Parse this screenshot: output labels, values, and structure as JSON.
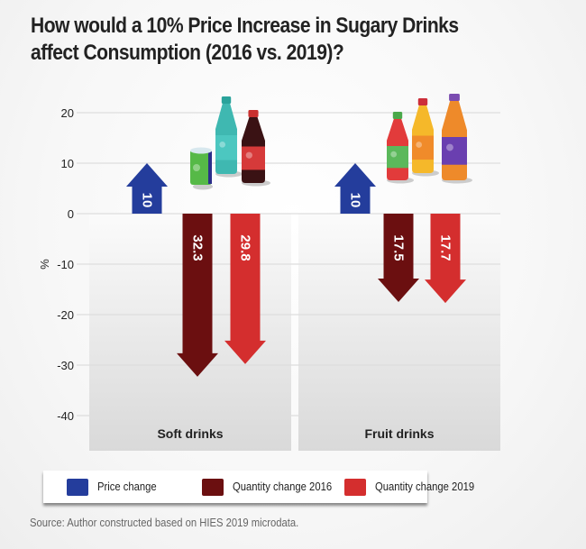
{
  "title": {
    "line1": "How would a 10% Price Increase in Sugary Drinks",
    "line2": "affect Consumption (2016 vs. 2019)?"
  },
  "chart_data": {
    "type": "bar",
    "title": "How would a 10% Price Increase in Sugary Drinks affect Consumption (2016 vs. 2019)?",
    "xlabel": "",
    "ylabel": "%",
    "ylim": [
      -40,
      20
    ],
    "yticks": [
      20,
      10,
      0,
      -10,
      -20,
      -30,
      -40
    ],
    "grid": true,
    "categories": [
      "Soft drinks",
      "Fruit drinks"
    ],
    "series": [
      {
        "name": "Price change",
        "color": "#243d9c",
        "values": [
          10,
          10
        ],
        "labels": [
          "10",
          "10"
        ]
      },
      {
        "name": "Quantity change 2016",
        "color": "#6b0f10",
        "values": [
          -32.3,
          -17.5
        ],
        "labels": [
          "32.3",
          "17.5"
        ]
      },
      {
        "name": "Quantity change 2019",
        "color": "#d42e2e",
        "values": [
          -29.8,
          -17.7
        ],
        "labels": [
          "29.8",
          "17.7"
        ]
      }
    ],
    "legend_position": "bottom",
    "bar_style": "arrows",
    "decorations": [
      "soft-drink-bottles-illustration",
      "fruit-drink-bottles-illustration"
    ]
  },
  "legend": {
    "items": [
      {
        "label": "Price change",
        "color": "#243d9c"
      },
      {
        "label": "Quantity change 2016",
        "color": "#6b0f10"
      },
      {
        "label": "Quantity change 2019",
        "color": "#d42e2e"
      }
    ]
  },
  "source": "Source: Author constructed based on HIES 2019 microdata."
}
